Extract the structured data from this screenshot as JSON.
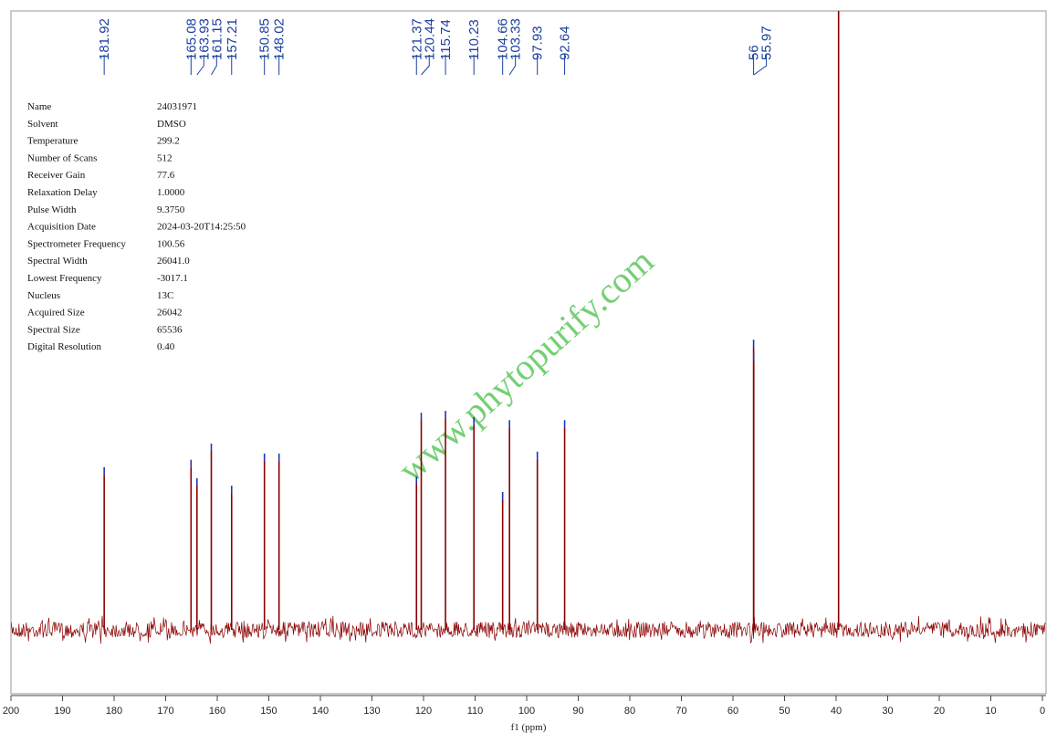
{
  "chart_data": {
    "type": "spectrum",
    "xlabel": "f1 (ppm)",
    "watermark": "www.phytopurify.com",
    "x": [
      181.92,
      165.08,
      163.93,
      161.15,
      157.21,
      150.85,
      148.02,
      121.37,
      120.44,
      115.74,
      110.23,
      104.66,
      103.33,
      97.93,
      92.64,
      56.0,
      55.97,
      39.52
    ],
    "labeled": [
      true,
      true,
      true,
      true,
      true,
      true,
      true,
      true,
      true,
      true,
      true,
      true,
      true,
      true,
      true,
      true,
      true,
      false
    ],
    "values": [
      25.1,
      26.3,
      23.3,
      28.9,
      22.1,
      27.3,
      27.3,
      23.6,
      33.9,
      34.2,
      33.2,
      21.1,
      32.7,
      27.6,
      32.7,
      45.7,
      43.5,
      110
    ],
    "color": "#8b0000",
    "xlim": [
      200,
      0
    ],
    "ylim": [
      0,
      100
    ],
    "xticks": [
      200,
      190,
      180,
      170,
      160,
      150,
      140,
      130,
      120,
      110,
      100,
      90,
      80,
      70,
      60,
      50,
      40,
      30,
      20,
      10,
      0
    ]
  },
  "parameters": [
    {
      "name": "Name",
      "value": "24031971"
    },
    {
      "name": "Solvent",
      "value": "DMSO"
    },
    {
      "name": "Temperature",
      "value": "299.2"
    },
    {
      "name": "Number of Scans",
      "value": "512"
    },
    {
      "name": "Receiver Gain",
      "value": "77.6"
    },
    {
      "name": "Relaxation Delay",
      "value": "1.0000"
    },
    {
      "name": "Pulse Width",
      "value": "9.3750"
    },
    {
      "name": "Acquisition Date",
      "value": "2024-03-20T14:25:50"
    },
    {
      "name": "Spectrometer Frequency",
      "value": "100.56"
    },
    {
      "name": "Spectral Width",
      "value": "26041.0"
    },
    {
      "name": "Lowest Frequency",
      "value": "-3017.1"
    },
    {
      "name": "Nucleus",
      "value": "13C"
    },
    {
      "name": "Acquired Size",
      "value": "26042"
    },
    {
      "name": "Spectral Size",
      "value": "65536"
    },
    {
      "name": "Digital Resolution",
      "value": "0.40"
    }
  ]
}
